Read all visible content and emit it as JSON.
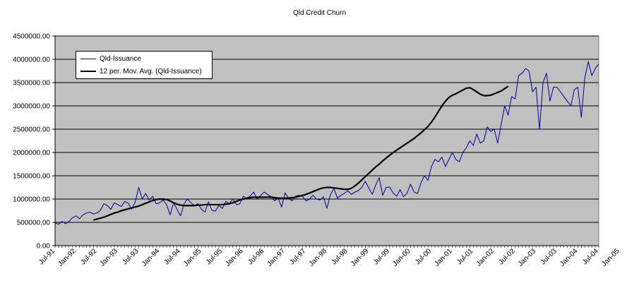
{
  "chart_data": {
    "type": "line",
    "title": "Qld Credit Churn",
    "xlabel": "",
    "ylabel": "",
    "ylim": [
      0,
      4500000
    ],
    "yticks": [
      "0.00",
      "500000.00",
      "1000000.00",
      "1500000.00",
      "2000000.00",
      "2500000.00",
      "3000000.00",
      "3500000.00",
      "4000000.00",
      "4500000.00"
    ],
    "x_start": "Jul-91",
    "x_tick_labels": [
      "Jul-91",
      "Jan-92",
      "Jul-92",
      "Jan-93",
      "Jul-93",
      "Jan-94",
      "Jul-94",
      "Jan-95",
      "Jul-95",
      "Jan-96",
      "Jul-96",
      "Jan-97",
      "Jul-97",
      "Jan-98",
      "Jul-98",
      "Jan-99",
      "Jul-99",
      "Jan-00",
      "Jul-00",
      "Jan-01",
      "Jul-01",
      "Jan-02",
      "Jul-02",
      "Jan-03",
      "Jul-03",
      "Jan-04",
      "Jul-04",
      "Jan-05"
    ],
    "grid": true,
    "background": "#c0c0c0",
    "legend_position": "top-left",
    "series": [
      {
        "name": "Qld-Issuance",
        "color": "#00009c",
        "values": [
          490000,
          460000,
          520000,
          470000,
          520000,
          600000,
          640000,
          580000,
          660000,
          700000,
          720000,
          680000,
          700000,
          760000,
          900000,
          860000,
          780000,
          920000,
          880000,
          840000,
          950000,
          910000,
          780000,
          940000,
          1250000,
          1000000,
          1120000,
          980000,
          1060000,
          900000,
          920000,
          980000,
          880000,
          660000,
          920000,
          780000,
          640000,
          900000,
          1000000,
          920000,
          860000,
          900000,
          780000,
          720000,
          940000,
          760000,
          740000,
          860000,
          800000,
          950000,
          900000,
          1000000,
          880000,
          900000,
          1060000,
          1010000,
          1070000,
          1150000,
          1000000,
          1080000,
          1150000,
          1100000,
          1050000,
          960000,
          1020000,
          830000,
          1130000,
          1020000,
          960000,
          1060000,
          1080000,
          1060000,
          960000,
          1000000,
          1080000,
          1000000,
          980000,
          1050000,
          800000,
          1090000,
          1230000,
          1020000,
          1080000,
          1120000,
          1180000,
          1100000,
          1150000,
          1180000,
          1250000,
          1380000,
          1240000,
          1100000,
          1300000,
          1460000,
          1080000,
          1250000,
          1260000,
          1130000,
          1060000,
          1200000,
          1050000,
          1130000,
          1320000,
          1150000,
          1120000,
          1350000,
          1500000,
          1400000,
          1700000,
          1850000,
          1800000,
          1900000,
          1700000,
          1850000,
          2000000,
          1850000,
          1800000,
          2000000,
          2100000,
          2250000,
          2150000,
          2400000,
          2200000,
          2250000,
          2550000,
          2450000,
          2500000,
          2200000,
          2600000,
          3000000,
          2800000,
          3200000,
          3150000,
          3650000,
          3700000,
          3800000,
          3750000,
          3300000,
          3400000,
          2500000,
          3500000,
          3700000,
          3100000,
          3400000,
          3400000,
          3300000,
          3200000,
          3100000,
          3000000,
          3350000,
          3400000,
          2750000,
          3600000,
          3950000,
          3650000,
          3800000,
          3900000
        ]
      },
      {
        "name": "12 per. Mov. Avg. (Qld-Issuance)",
        "color": "#000000",
        "start_index": 11,
        "values": [
          550000,
          570000,
          590000,
          610000,
          640000,
          670000,
          700000,
          720000,
          750000,
          770000,
          790000,
          810000,
          830000,
          850000,
          880000,
          910000,
          940000,
          970000,
          990000,
          1000000,
          1000000,
          990000,
          960000,
          920000,
          890000,
          870000,
          860000,
          860000,
          860000,
          860000,
          870000,
          870000,
          880000,
          880000,
          880000,
          880000,
          880000,
          880000,
          890000,
          900000,
          920000,
          950000,
          980000,
          1000000,
          1020000,
          1030000,
          1040000,
          1040000,
          1040000,
          1040000,
          1040000,
          1040000,
          1030000,
          1020000,
          1020000,
          1020000,
          1020000,
          1030000,
          1040000,
          1060000,
          1080000,
          1100000,
          1130000,
          1160000,
          1190000,
          1220000,
          1240000,
          1250000,
          1250000,
          1240000,
          1230000,
          1220000,
          1210000,
          1210000,
          1230000,
          1280000,
          1340000,
          1410000,
          1480000,
          1550000,
          1620000,
          1690000,
          1750000,
          1820000,
          1880000,
          1940000,
          2000000,
          2050000,
          2100000,
          2150000,
          2200000,
          2250000,
          2300000,
          2360000,
          2420000,
          2490000,
          2560000,
          2650000,
          2760000,
          2880000,
          3000000,
          3100000,
          3180000,
          3230000,
          3260000,
          3300000,
          3340000,
          3380000,
          3390000,
          3350000,
          3300000,
          3250000,
          3220000,
          3220000,
          3230000,
          3260000,
          3290000,
          3320000,
          3370000,
          3420000
        ]
      }
    ]
  }
}
